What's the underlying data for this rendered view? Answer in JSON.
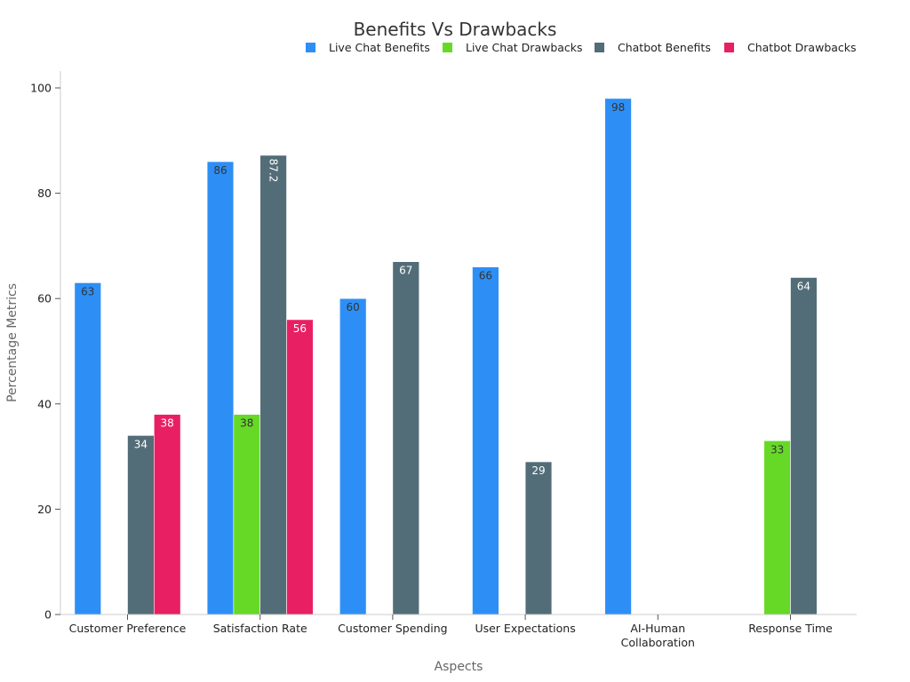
{
  "chart_data": {
    "type": "bar",
    "title": "Benefits Vs Drawbacks",
    "xlabel": "Aspects",
    "ylabel": "Percentage Metrics",
    "categories": [
      "Customer Preference",
      "Satisfaction Rate",
      "Customer Spending",
      "User Expectations",
      "AI-Human Collaboration",
      "Response Time"
    ],
    "category_tick_lines": [
      [
        "Customer Preference"
      ],
      [
        "Satisfaction Rate"
      ],
      [
        "Customer Spending"
      ],
      [
        "User Expectations"
      ],
      [
        "AI-Human",
        "Collaboration"
      ],
      [
        "Response Time"
      ]
    ],
    "series": [
      {
        "name": "Live Chat Benefits",
        "color": "#2d8ff5",
        "label_color": "#333333",
        "values": [
          63,
          86,
          60,
          66,
          98,
          null
        ]
      },
      {
        "name": "Live Chat Drawbacks",
        "color": "#66d927",
        "label_color": "#333333",
        "values": [
          null,
          38,
          null,
          null,
          null,
          33
        ]
      },
      {
        "name": "Chatbot Benefits",
        "color": "#536d78",
        "label_color": "#ffffff",
        "values": [
          34,
          87.2,
          67,
          29,
          null,
          64
        ]
      },
      {
        "name": "Chatbot Drawbacks",
        "color": "#e82063",
        "label_color": "#ffffff",
        "values": [
          38,
          56,
          null,
          null,
          null,
          null
        ]
      }
    ],
    "ylim": [
      0,
      103
    ],
    "yticks": [
      0,
      20,
      40,
      60,
      80,
      100
    ],
    "rotated_labels": [
      {
        "series": 2,
        "category": 1
      }
    ],
    "grid": false,
    "legend_position": "top-right"
  }
}
